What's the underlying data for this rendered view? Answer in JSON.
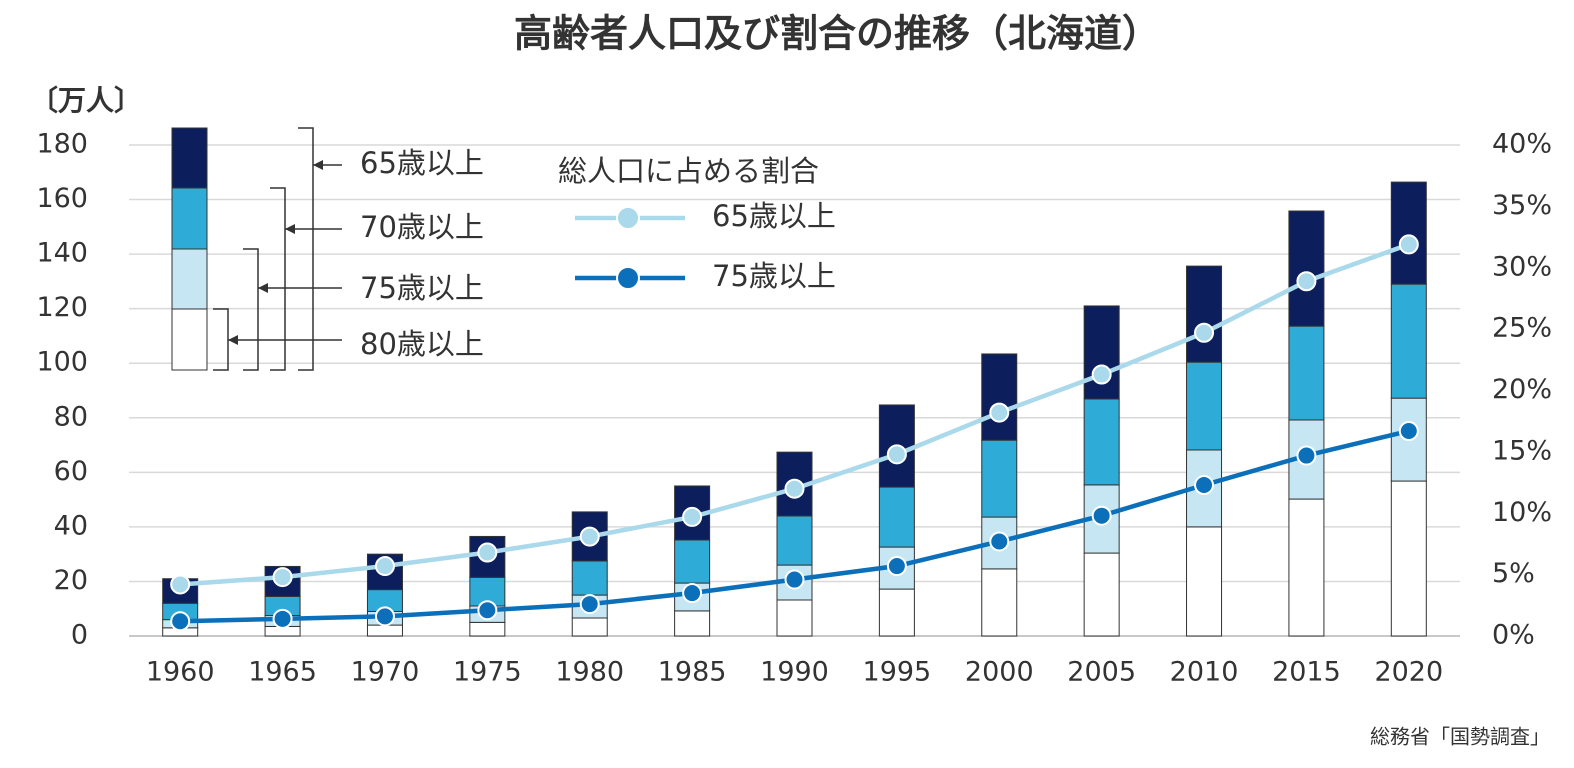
{
  "chart_data": {
    "type": "bar",
    "title": "高齢者人口及び割合の推移（北海道）",
    "y_label": "〔万人〕",
    "source": "総務省「国勢調査」",
    "legend_title": "総人口に占める割合",
    "categories": [
      "1960",
      "1965",
      "1970",
      "1975",
      "1980",
      "1985",
      "1990",
      "1995",
      "2000",
      "2005",
      "2010",
      "2015",
      "2020"
    ],
    "ylim": [
      0,
      180
    ],
    "yticks": [
      0,
      20,
      40,
      60,
      80,
      100,
      120,
      140,
      160,
      180
    ],
    "y2lim": [
      0,
      40
    ],
    "y2ticks": [
      {
        "value": 0,
        "label": "0%"
      },
      {
        "value": 5,
        "label": "5%"
      },
      {
        "value": 10,
        "label": "10%"
      },
      {
        "value": 15,
        "label": "15%"
      },
      {
        "value": 20,
        "label": "20%"
      },
      {
        "value": 25,
        "label": "25%"
      },
      {
        "value": 30,
        "label": "30%"
      },
      {
        "value": 35,
        "label": "35%"
      },
      {
        "value": 40,
        "label": "40%"
      }
    ],
    "grid": true,
    "series": [
      {
        "name": "80歳以上",
        "type": "bar",
        "color": "#ffffff",
        "values": [
          3,
          3.5,
          4,
          5,
          6.6,
          9.2,
          13.2,
          17.2,
          24.6,
          30.4,
          40,
          50.2,
          56.8
        ]
      },
      {
        "name": "75歳以上",
        "type": "bar",
        "color": "#c5e6f2",
        "values": [
          3,
          4,
          5,
          6,
          8.4,
          10.2,
          12.8,
          15.4,
          19,
          25,
          28.2,
          29,
          30.4
        ]
      },
      {
        "name": "70歳以上",
        "type": "bar",
        "color": "#2eabd6",
        "values": [
          6,
          7,
          8,
          10.5,
          12.5,
          15.8,
          18,
          22,
          28.2,
          31.5,
          32.2,
          34.4,
          41.8
        ]
      },
      {
        "name": "65歳以上",
        "type": "bar",
        "color": "#0c1f5c",
        "values": [
          9,
          11,
          13,
          15,
          18,
          19.8,
          23.4,
          30.1,
          31.6,
          34.1,
          35.2,
          42.2,
          37.4
        ]
      },
      {
        "name": "65歳以上",
        "type": "line",
        "axis": "y2",
        "color": "#a9d9ea",
        "values": [
          4.2,
          4.8,
          5.7,
          6.8,
          8.1,
          9.7,
          12.0,
          14.8,
          18.2,
          21.3,
          24.7,
          28.9,
          31.9
        ]
      },
      {
        "name": "75歳以上",
        "type": "line",
        "axis": "y2",
        "color": "#0b6fba",
        "values": [
          1.2,
          1.4,
          1.6,
          2.1,
          2.6,
          3.5,
          4.6,
          5.7,
          7.7,
          9.8,
          12.3,
          14.7,
          16.7
        ]
      }
    ]
  }
}
